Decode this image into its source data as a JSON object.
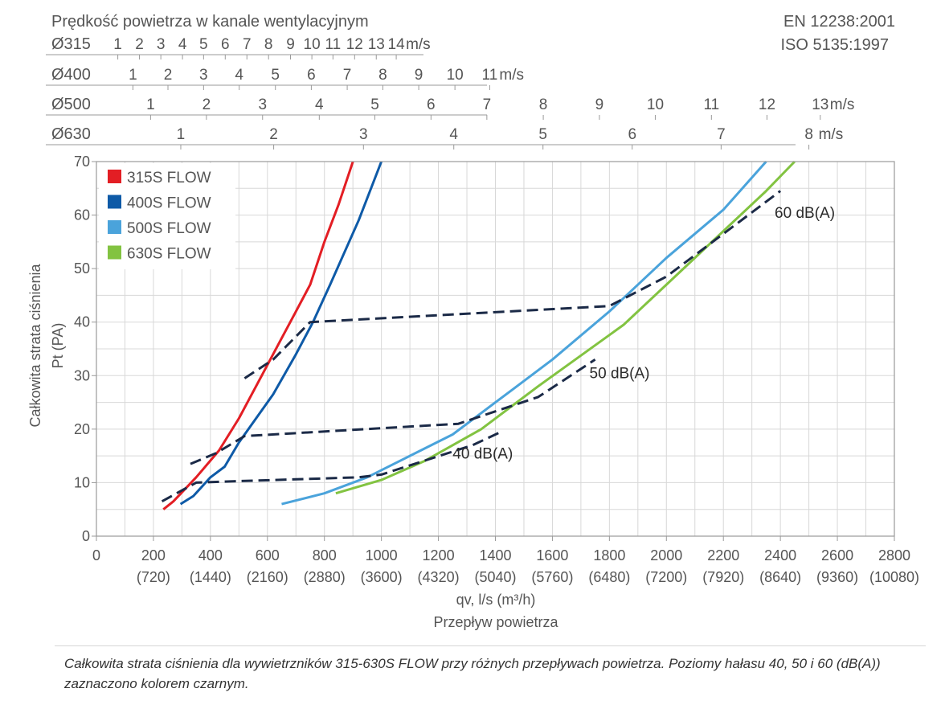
{
  "chart_data": {
    "type": "line",
    "title": "Prędkość powietrza w kanale wentylacyjnym",
    "standards": [
      "EN 12238:2001",
      "ISO 5135:1997"
    ],
    "xlabel": "qv, l/s (m³/h)",
    "xlabel2": "Przepływ powietrza",
    "ylabel": "Całkowita strata ciśnienia",
    "ylabel2": "Pt (PA)",
    "xlim": [
      0,
      2800
    ],
    "ylim": [
      0,
      70
    ],
    "grid": true,
    "legend_position": "top-left",
    "x_ticks": [
      0,
      200,
      400,
      600,
      800,
      1000,
      1200,
      1400,
      1600,
      1800,
      2000,
      2200,
      2400,
      2600,
      2800
    ],
    "x_ticks_m3h": [
      "",
      "(720)",
      "(1440)",
      "(2160)",
      "(2880)",
      "(3600)",
      "(4320)",
      "(5040)",
      "(5760)",
      "(6480)",
      "(7200)",
      "(7920)",
      "(8640)",
      "(9360)",
      "(10080)"
    ],
    "y_ticks": [
      0,
      10,
      20,
      30,
      40,
      50,
      60,
      70
    ],
    "velocity_scales": [
      {
        "label": "Ø315",
        "unit": "m/s",
        "ticks": [
          {
            "v": "1",
            "x": 75
          },
          {
            "v": "2",
            "x": 151
          },
          {
            "v": "3",
            "x": 226
          },
          {
            "v": "4",
            "x": 302
          },
          {
            "v": "5",
            "x": 376
          },
          {
            "v": "6",
            "x": 452
          },
          {
            "v": "7",
            "x": 528
          },
          {
            "v": "8",
            "x": 604
          },
          {
            "v": "9",
            "x": 681
          },
          {
            "v": "10",
            "x": 756
          },
          {
            "v": "11",
            "x": 830
          },
          {
            "v": "12",
            "x": 906
          },
          {
            "v": "13",
            "x": 982
          },
          {
            "v": "14",
            "x": 1052
          }
        ]
      },
      {
        "label": "Ø400",
        "unit": "m/s",
        "ticks": [
          {
            "v": "1",
            "x": 128
          },
          {
            "v": "2",
            "x": 251
          },
          {
            "v": "3",
            "x": 376
          },
          {
            "v": "4",
            "x": 501
          },
          {
            "v": "5",
            "x": 628
          },
          {
            "v": "6",
            "x": 754
          },
          {
            "v": "7",
            "x": 880
          },
          {
            "v": "8",
            "x": 1005
          },
          {
            "v": "9",
            "x": 1131
          },
          {
            "v": "10",
            "x": 1258
          },
          {
            "v": "11",
            "x": 1380
          }
        ]
      },
      {
        "label": "Ø500",
        "unit": "m/s",
        "ticks": [
          {
            "v": "1",
            "x": 190
          },
          {
            "v": "2",
            "x": 386
          },
          {
            "v": "3",
            "x": 583
          },
          {
            "v": "4",
            "x": 782
          },
          {
            "v": "5",
            "x": 977
          },
          {
            "v": "6",
            "x": 1174
          },
          {
            "v": "7",
            "x": 1370
          },
          {
            "v": "8",
            "x": 1568
          },
          {
            "v": "9",
            "x": 1765
          },
          {
            "v": "10",
            "x": 1961
          },
          {
            "v": "11",
            "x": 2158
          },
          {
            "v": "12",
            "x": 2353
          },
          {
            "v": "13",
            "x": 2540
          }
        ]
      },
      {
        "label": "Ø630",
        "unit": "m/s",
        "ticks": [
          {
            "v": "1",
            "x": 296
          },
          {
            "v": "2",
            "x": 622
          },
          {
            "v": "3",
            "x": 937
          },
          {
            "v": "4",
            "x": 1254
          },
          {
            "v": "5",
            "x": 1567
          },
          {
            "v": "6",
            "x": 1880
          },
          {
            "v": "7",
            "x": 2192
          },
          {
            "v": "8",
            "x": 2500
          }
        ]
      }
    ],
    "series": [
      {
        "name": "315S FLOW",
        "color": "#e31e24",
        "dash": false,
        "points": [
          [
            235,
            5
          ],
          [
            270,
            6.5
          ],
          [
            350,
            11
          ],
          [
            430,
            16
          ],
          [
            500,
            22
          ],
          [
            580,
            30
          ],
          [
            640,
            36
          ],
          [
            700,
            42
          ],
          [
            750,
            47
          ],
          [
            800,
            55
          ],
          [
            850,
            62
          ],
          [
            900,
            70
          ]
        ]
      },
      {
        "name": "400S FLOW",
        "color": "#0e5aa7",
        "dash": false,
        "points": [
          [
            295,
            6
          ],
          [
            340,
            7.5
          ],
          [
            400,
            11
          ],
          [
            450,
            13
          ],
          [
            500,
            17.5
          ],
          [
            620,
            26.5
          ],
          [
            700,
            34
          ],
          [
            760,
            40
          ],
          [
            820,
            47
          ],
          [
            920,
            59
          ],
          [
            1000,
            70
          ]
        ]
      },
      {
        "name": "500S FLOW",
        "color": "#4aa3db",
        "dash": false,
        "points": [
          [
            650,
            6
          ],
          [
            800,
            8
          ],
          [
            950,
            11
          ],
          [
            1100,
            15
          ],
          [
            1250,
            19
          ],
          [
            1400,
            25
          ],
          [
            1600,
            33
          ],
          [
            1800,
            42
          ],
          [
            2000,
            52
          ],
          [
            2200,
            61
          ],
          [
            2350,
            70
          ]
        ]
      },
      {
        "name": "630S FLOW",
        "color": "#82c341",
        "dash": false,
        "points": [
          [
            840,
            8
          ],
          [
            1000,
            10.5
          ],
          [
            1150,
            14
          ],
          [
            1350,
            20
          ],
          [
            1550,
            28
          ],
          [
            1850,
            39.5
          ],
          [
            2000,
            47
          ],
          [
            2200,
            57
          ],
          [
            2350,
            64.5
          ],
          [
            2450,
            70
          ]
        ]
      },
      {
        "name": "40 dB(A)",
        "color": "#1b2a47",
        "dash": true,
        "points": [
          [
            230,
            6.5
          ],
          [
            350,
            10
          ],
          [
            450,
            10.2
          ],
          [
            920,
            11
          ],
          [
            1000,
            11.5
          ],
          [
            1320,
            17
          ],
          [
            1420,
            19.5
          ]
        ]
      },
      {
        "name": "50 dB(A)",
        "color": "#1b2a47",
        "dash": true,
        "points": [
          [
            330,
            13.5
          ],
          [
            420,
            15.5
          ],
          [
            520,
            18.7
          ],
          [
            1270,
            21
          ],
          [
            1550,
            26
          ],
          [
            1750,
            33
          ]
        ]
      },
      {
        "name": "60 dB(A)",
        "color": "#1b2a47",
        "dash": true,
        "points": [
          [
            520,
            29.5
          ],
          [
            620,
            33
          ],
          [
            750,
            40
          ],
          [
            1800,
            43
          ],
          [
            2000,
            48.5
          ],
          [
            2400,
            64.5
          ]
        ]
      }
    ],
    "annotations": [
      {
        "text": "40 dB(A)",
        "x": 1250,
        "y": 14.5
      },
      {
        "text": "50 dB(A)",
        "x": 1730,
        "y": 29.5
      },
      {
        "text": "60 dB(A)",
        "x": 2380,
        "y": 59.5
      }
    ]
  },
  "caption": "Całkowita strata ciśnienia dla wywietrzników 315-630S FLOW przy różnych przepływach powietrza. Poziomy hałasu 40, 50 i 60 (dB(A)) zaznaczono kolorem czarnym."
}
